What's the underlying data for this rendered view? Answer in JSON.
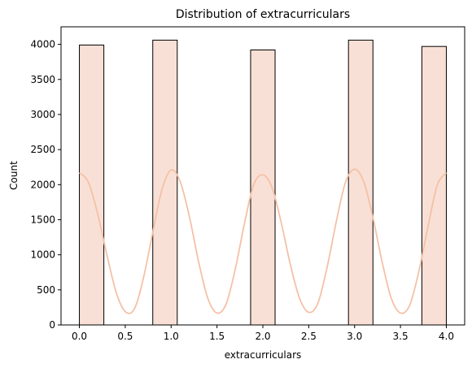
{
  "chart_data": {
    "type": "bar",
    "title": "Distribution of extracurriculars",
    "xlabel": "extracurriculars",
    "ylabel": "Count",
    "xlim": [
      -0.2,
      4.2
    ],
    "ylim": [
      0,
      4250
    ],
    "xticks": [
      0.0,
      0.5,
      1.0,
      1.5,
      2.0,
      2.5,
      3.0,
      3.5,
      4.0
    ],
    "xtick_labels": [
      "0.0",
      "0.5",
      "1.0",
      "1.5",
      "2.0",
      "2.5",
      "3.0",
      "3.5",
      "4.0"
    ],
    "yticks": [
      0,
      500,
      1000,
      1500,
      2000,
      2500,
      3000,
      3500,
      4000
    ],
    "ytick_labels": [
      "0",
      "500",
      "1000",
      "1500",
      "2000",
      "2500",
      "3000",
      "3500",
      "4000"
    ],
    "bars": [
      {
        "x0": 0.0,
        "x1": 0.2667,
        "value": 3990
      },
      {
        "x0": 0.8,
        "x1": 1.0667,
        "value": 4060
      },
      {
        "x0": 1.8667,
        "x1": 2.1333,
        "value": 3920
      },
      {
        "x0": 2.9333,
        "x1": 3.2,
        "value": 4060
      },
      {
        "x0": 3.7333,
        "x1": 4.0,
        "value": 3970
      }
    ],
    "kde": {
      "x": [
        0.0,
        0.1,
        0.2,
        0.3,
        0.4,
        0.5,
        0.6,
        0.7,
        0.8,
        0.9,
        1.0,
        1.1,
        1.2,
        1.3,
        1.4,
        1.5,
        1.6,
        1.7,
        1.8,
        1.9,
        2.0,
        2.1,
        2.2,
        2.3,
        2.4,
        2.5,
        2.6,
        2.7,
        2.8,
        2.9,
        3.0,
        3.1,
        3.2,
        3.3,
        3.4,
        3.5,
        3.6,
        3.7,
        3.8,
        3.9,
        4.0
      ],
      "y": [
        2170,
        2030,
        1580,
        1000,
        470,
        190,
        230,
        680,
        1320,
        1930,
        2210,
        2040,
        1540,
        900,
        380,
        170,
        300,
        800,
        1450,
        2000,
        2140,
        1960,
        1460,
        860,
        380,
        180,
        310,
        820,
        1470,
        2030,
        2220,
        2040,
        1530,
        900,
        380,
        170,
        280,
        760,
        1400,
        1990,
        2170
      ]
    },
    "colors": {
      "bar_fill": "#f9e0d6",
      "bar_edge": "#000000",
      "kde_line": "#f4c1a6"
    },
    "grid": false,
    "legend": "none"
  }
}
